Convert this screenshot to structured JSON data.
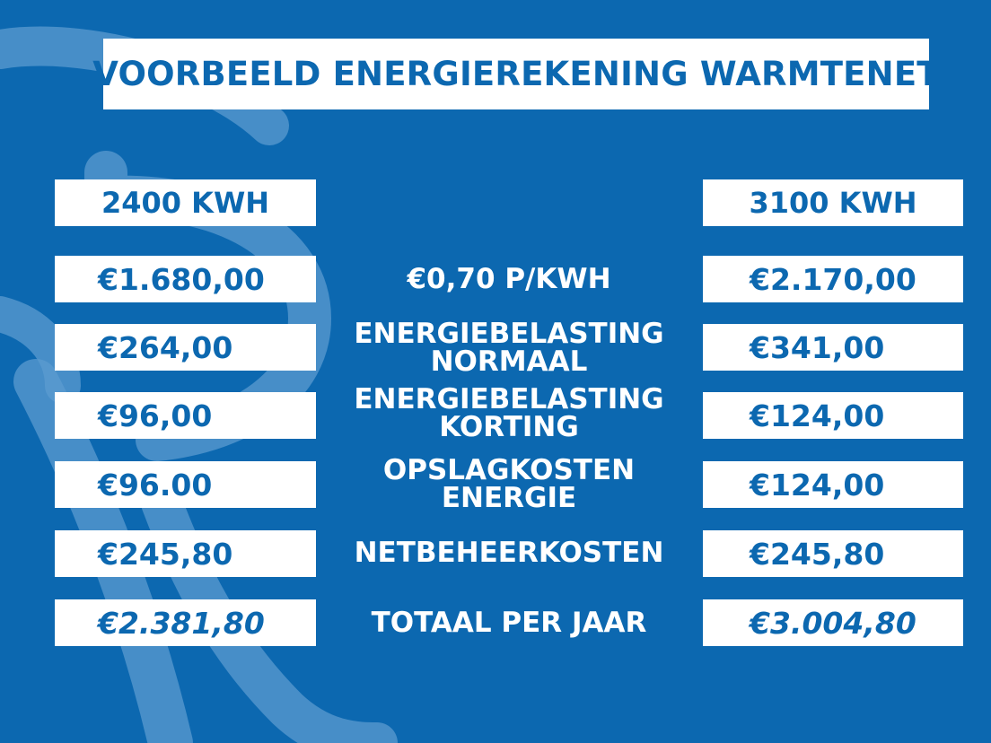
{
  "title": "VOORBEELD ENERGIEREKENING WARMTENET",
  "columns": {
    "left_header": "2400 KWH",
    "right_header": "3100 KWH"
  },
  "rows": [
    {
      "label_line1": "€0,70 P/KWH",
      "label_line2": "",
      "left": "€1.680,00",
      "right": "€2.170,00"
    },
    {
      "label_line1": "ENERGIEBELASTING",
      "label_line2": "NORMAAL",
      "left": "€264,00",
      "right": "€341,00"
    },
    {
      "label_line1": "ENERGIEBELASTING",
      "label_line2": "KORTING",
      "left": "€96,00",
      "right": "€124,00"
    },
    {
      "label_line1": "OPSLAGKOSTEN",
      "label_line2": "ENERGIE",
      "left": "€96.00",
      "right": "€124,00"
    },
    {
      "label_line1": "NETBEHEERKOSTEN",
      "label_line2": "",
      "left": "€245,80",
      "right": "€245,80"
    },
    {
      "label_line1": "TOTAAL PER JAAR",
      "label_line2": "",
      "left": "€2.381,80",
      "right": "€3.004,80"
    }
  ],
  "colors": {
    "background": "#0c68b0",
    "box": "#ffffff",
    "text_accent": "#0c68b0",
    "watermark": "#5b9bd0"
  },
  "decoration": "watermark-logo"
}
